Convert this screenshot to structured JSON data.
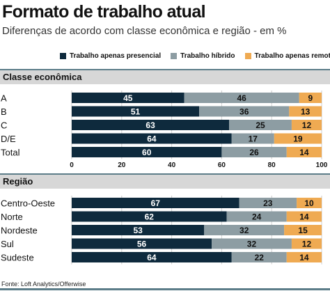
{
  "title": "Formato de trabalho atual",
  "subtitle": "Diferenças de acordo com classe econômica e região - em %",
  "source": "Fonte: Loft Analytics/Offerwise",
  "colors": {
    "presencial": "#0e2a3d",
    "hibrido": "#8d9da3",
    "remoto": "#efaa52"
  },
  "chart_data": [
    {
      "type": "bar",
      "orientation": "horizontal",
      "stacked": true,
      "title": "Classe econômica",
      "categories": [
        "A",
        "B",
        "C",
        "D/E",
        "Total"
      ],
      "series": [
        {
          "name": "Trabalho apenas presencial",
          "values": [
            45,
            51,
            63,
            64,
            60
          ]
        },
        {
          "name": "Trabalho híbrido",
          "values": [
            46,
            36,
            25,
            17,
            26
          ]
        },
        {
          "name": "Trabalho apenas remoto",
          "values": [
            9,
            13,
            12,
            19,
            14
          ]
        }
      ],
      "xlim": [
        0,
        100
      ],
      "xticks": [
        "0",
        "20",
        "40",
        "60",
        "80",
        "100"
      ],
      "legend": "top"
    },
    {
      "type": "bar",
      "orientation": "horizontal",
      "stacked": true,
      "title": "Região",
      "categories": [
        "Centro-Oeste",
        "Norte",
        "Nordeste",
        "Sul",
        "Sudeste"
      ],
      "series": [
        {
          "name": "Trabalho apenas presencial",
          "values": [
            67,
            62,
            53,
            56,
            64
          ]
        },
        {
          "name": "Trabalho híbrido",
          "values": [
            23,
            24,
            32,
            32,
            22
          ]
        },
        {
          "name": "Trabalho apenas remoto",
          "values": [
            10,
            14,
            15,
            12,
            14
          ]
        }
      ],
      "xlim": [
        0,
        100
      ],
      "xticks": [
        "0",
        "20",
        "40",
        "60",
        "80",
        "100"
      ]
    }
  ]
}
